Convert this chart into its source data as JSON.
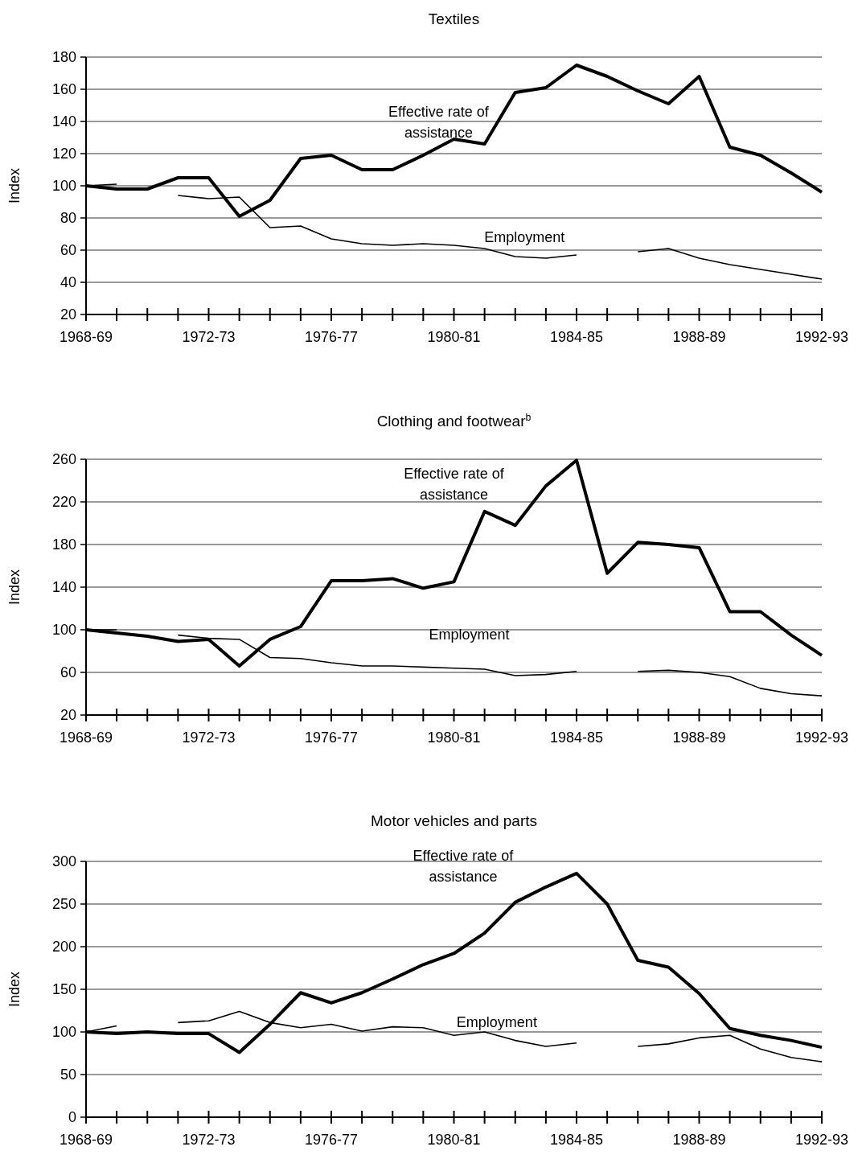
{
  "chart_data": [
    {
      "type": "line",
      "title": "Textiles",
      "ylabel": "Index",
      "categories": [
        "1968-69",
        null,
        null,
        null,
        "1972-73",
        null,
        null,
        null,
        "1976-77",
        null,
        null,
        null,
        "1980-81",
        null,
        null,
        null,
        "1984-85",
        null,
        null,
        null,
        "1988-89",
        null,
        null,
        null,
        "1992-93"
      ],
      "ylim": [
        20,
        180
      ],
      "yticks": [
        20,
        40,
        60,
        80,
        100,
        120,
        140,
        160,
        180
      ],
      "grid": "y",
      "series": [
        {
          "name": "Effective rate of assistance",
          "color": "#000000",
          "values": [
            100,
            98,
            98,
            105,
            105,
            81,
            91,
            117,
            119,
            110,
            110,
            119,
            129,
            126,
            158,
            161,
            175,
            168,
            159,
            151,
            168,
            124,
            119,
            108,
            96
          ]
        },
        {
          "name": "Employment",
          "color": "#000000",
          "values": [
            100,
            101,
            null,
            94,
            92,
            93,
            74,
            75,
            67,
            64,
            63,
            64,
            63,
            61,
            56,
            55,
            57,
            null,
            59,
            61,
            55,
            51,
            48,
            45,
            42
          ]
        }
      ]
    },
    {
      "type": "line",
      "title": "Clothing and footwear$^{b}$",
      "ylabel": "Index",
      "categories": [
        "1968-69",
        null,
        null,
        null,
        "1972-73",
        null,
        null,
        null,
        "1976-77",
        null,
        null,
        null,
        "1980-81",
        null,
        null,
        null,
        "1984-85",
        null,
        null,
        null,
        "1988-89",
        null,
        null,
        null,
        "1992-93"
      ],
      "ylim": [
        20,
        260
      ],
      "yticks": [
        20,
        60,
        100,
        140,
        180,
        220,
        260
      ],
      "grid": "y",
      "series": [
        {
          "name": "Effective rate of assistance",
          "color": "#000000",
          "values": [
            100,
            97,
            94,
            89,
            91,
            66,
            91,
            103,
            146,
            146,
            148,
            139,
            145,
            211,
            198,
            235,
            259,
            153,
            182,
            180,
            177,
            117,
            117,
            95,
            76
          ]
        },
        {
          "name": "Employment",
          "color": "#000000",
          "values": [
            100,
            100,
            null,
            95,
            92,
            91,
            74,
            73,
            69,
            66,
            66,
            65,
            64,
            63,
            57,
            58,
            61,
            null,
            61,
            62,
            60,
            56,
            45,
            40,
            38
          ]
        }
      ]
    },
    {
      "type": "line",
      "title": "Motor vehicles and parts",
      "ylabel": "Index",
      "categories": [
        "1968-69",
        null,
        null,
        null,
        "1972-73",
        null,
        null,
        null,
        "1976-77",
        null,
        null,
        null,
        "1980-81",
        null,
        null,
        null,
        "1984-85",
        null,
        null,
        null,
        "1988-89",
        null,
        null,
        null,
        "1992-93"
      ],
      "ylim": [
        0,
        300
      ],
      "yticks": [
        0,
        50,
        100,
        150,
        200,
        250,
        300
      ],
      "grid": "y",
      "series": [
        {
          "name": "Effective rate of assistance",
          "color": "#000000",
          "values": [
            100,
            98,
            100,
            98,
            98,
            76,
            109,
            146,
            134,
            146,
            162,
            179,
            192,
            216,
            252,
            270,
            286,
            250,
            184,
            176,
            145,
            104,
            96,
            90,
            82
          ]
        },
        {
          "name": "Employment",
          "color": "#000000",
          "values": [
            100,
            107,
            null,
            111,
            113,
            124,
            111,
            105,
            109,
            101,
            106,
            105,
            96,
            100,
            90,
            83,
            87,
            null,
            83,
            86,
            93,
            96,
            80,
            70,
            65
          ]
        }
      ]
    }
  ]
}
